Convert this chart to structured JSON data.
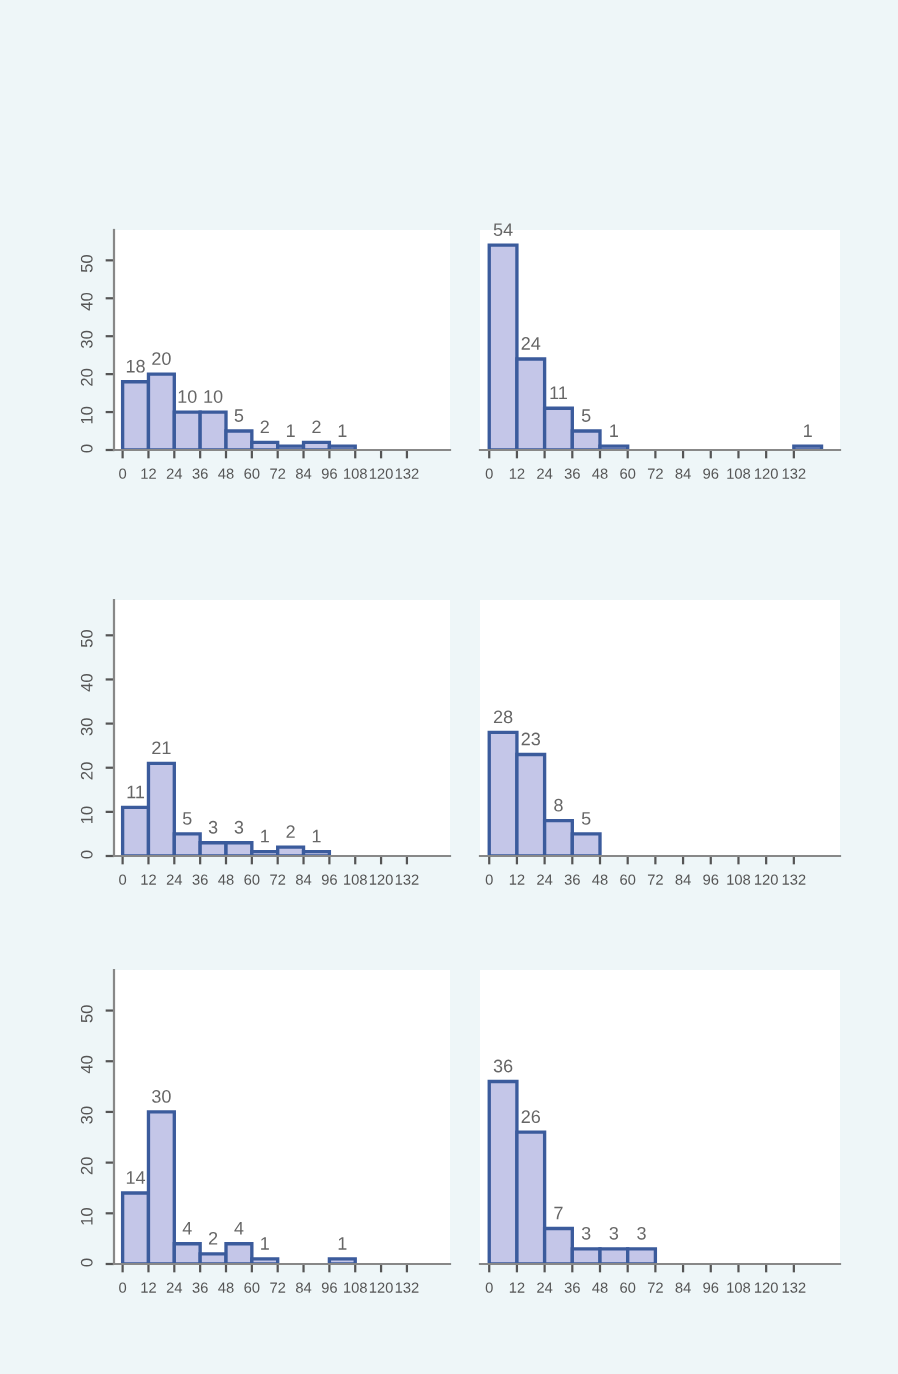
{
  "chart_data": [
    {
      "type": "histogram",
      "bins": [
        0,
        12,
        24,
        36,
        48,
        60,
        72,
        84,
        96,
        108
      ],
      "values": [
        18,
        20,
        10,
        10,
        5,
        2,
        1,
        2,
        1
      ],
      "data_labels": true,
      "color": "#c4c6e8",
      "xlim": [
        -4,
        152
      ],
      "xticks": [
        0,
        12,
        24,
        36,
        48,
        60,
        72,
        84,
        96,
        108,
        120,
        132
      ],
      "ylim": [
        0,
        58
      ],
      "yticks": [
        0,
        10,
        20,
        30,
        40,
        50
      ],
      "grid": false
    },
    {
      "type": "histogram",
      "bins": [
        0,
        12,
        24,
        36,
        48,
        60,
        72,
        84,
        96,
        108,
        120,
        132,
        144
      ],
      "values": [
        54,
        24,
        11,
        5,
        1,
        null,
        null,
        null,
        null,
        null,
        null,
        1
      ],
      "value_labels": [
        "54",
        "24",
        "11",
        "5",
        "1",
        null,
        null,
        null,
        null,
        null,
        null,
        "1"
      ],
      "color": "#c4c6e8",
      "xlim": [
        -4,
        152
      ],
      "xticks": [
        0,
        12,
        24,
        36,
        48,
        60,
        72,
        84,
        96,
        108,
        120,
        132
      ],
      "ylim": [
        0,
        58
      ],
      "tick_labels": "x",
      "grid": false
    },
    {
      "type": "histogram",
      "bins": [
        0,
        12,
        24,
        36,
        48,
        60,
        72,
        84,
        96
      ],
      "values": [
        11,
        21,
        5,
        3,
        3,
        1,
        2,
        1
      ],
      "data_labels": true,
      "color": "#c4c6e8",
      "xlim": [
        -4,
        152
      ],
      "xticks": [
        0,
        12,
        24,
        36,
        48,
        60,
        72,
        84,
        96,
        108,
        120,
        132
      ],
      "ylim": [
        0,
        58
      ],
      "yticks": [
        0,
        10,
        20,
        30,
        40,
        50
      ],
      "grid": false
    },
    {
      "type": "histogram",
      "bins": [
        0,
        12,
        24,
        36,
        48
      ],
      "values": [
        28,
        23,
        8,
        5
      ],
      "data_labels": true,
      "color": "#c4c6e8",
      "xlim": [
        -4,
        152
      ],
      "xticks": [
        0,
        12,
        24,
        36,
        48,
        60,
        72,
        84,
        96,
        108,
        120,
        132
      ],
      "ylim": [
        0,
        58
      ],
      "tick_labels": "x",
      "grid": false
    },
    {
      "type": "histogram",
      "bins": [
        0,
        12,
        24,
        36,
        48,
        60,
        72,
        84,
        96,
        108
      ],
      "values": [
        14,
        30,
        4,
        2,
        4,
        1,
        null,
        null,
        1
      ],
      "value_labels": [
        "14",
        "30",
        "4",
        "2",
        "4",
        "1",
        null,
        null,
        "1"
      ],
      "color": "#c4c6e8",
      "xlim": [
        -4,
        152
      ],
      "xticks": [
        0,
        12,
        24,
        36,
        48,
        60,
        72,
        84,
        96,
        108,
        120,
        132
      ],
      "ylim": [
        0,
        58
      ],
      "yticks": [
        0,
        10,
        20,
        30,
        40,
        50
      ],
      "grid": false
    },
    {
      "type": "histogram",
      "bins": [
        0,
        12,
        24,
        36,
        48,
        60,
        72
      ],
      "values": [
        36,
        26,
        7,
        3,
        3,
        3
      ],
      "data_labels": true,
      "color": "#c4c6e8",
      "xlim": [
        -4,
        152
      ],
      "xticks": [
        0,
        12,
        24,
        36,
        48,
        60,
        72,
        84,
        96,
        108,
        120,
        132
      ],
      "ylim": [
        0,
        58
      ],
      "tick_labels": "x",
      "grid": false
    }
  ]
}
